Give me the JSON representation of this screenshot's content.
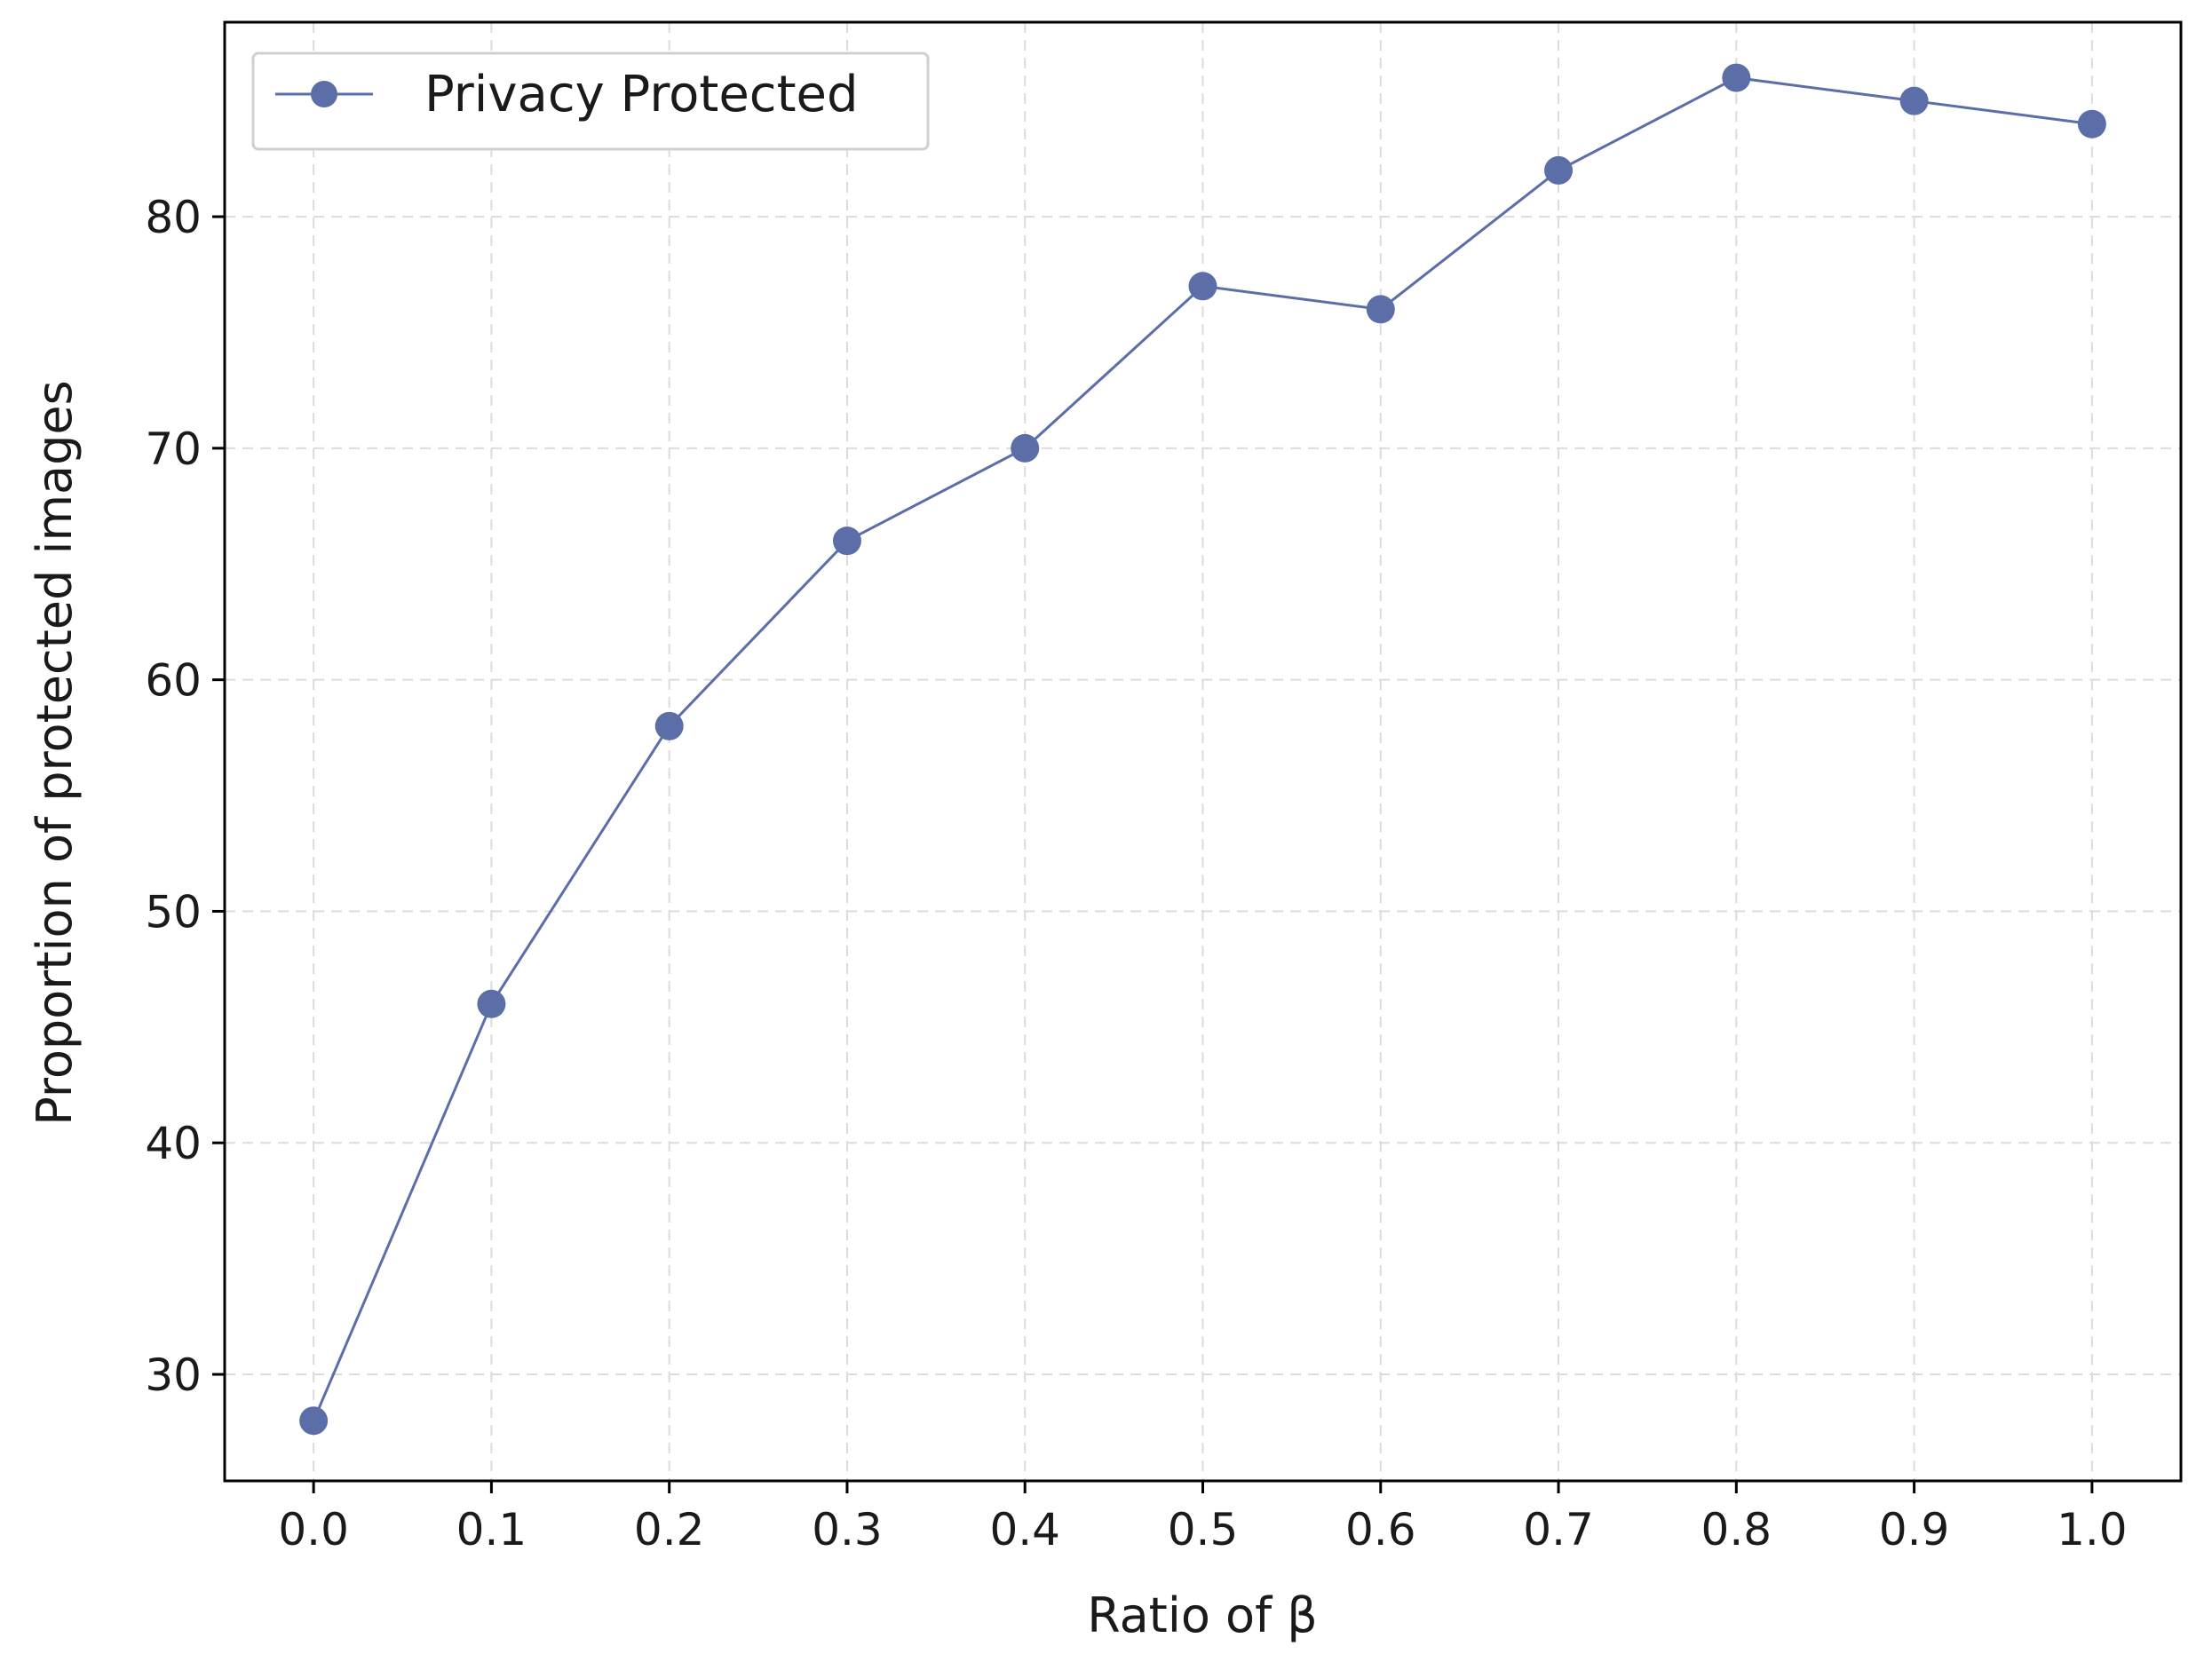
{
  "chart_data": {
    "type": "line",
    "title": "",
    "xlabel": "Ratio of β",
    "ylabel": "Proportion of protected images",
    "x": [
      0.0,
      0.1,
      0.2,
      0.3,
      0.4,
      0.5,
      0.6,
      0.7,
      0.8,
      0.9,
      1.0
    ],
    "x_tick_labels": [
      "0.0",
      "0.1",
      "0.2",
      "0.3",
      "0.4",
      "0.5",
      "0.6",
      "0.7",
      "0.8",
      "0.9",
      "1.0"
    ],
    "y_ticks": [
      30,
      40,
      50,
      60,
      70,
      80
    ],
    "y_tick_labels": [
      "30",
      "40",
      "50",
      "60",
      "70",
      "80"
    ],
    "xlim": [
      -0.05,
      1.05
    ],
    "ylim": [
      25.4,
      88.4
    ],
    "series": [
      {
        "name": "Privacy Protected",
        "values": [
          28,
          46,
          58,
          66,
          70,
          77,
          76,
          82,
          86,
          85,
          84
        ],
        "color": "#5b6ea8",
        "marker": "circle"
      }
    ],
    "grid": true,
    "legend_position": "top-left"
  }
}
